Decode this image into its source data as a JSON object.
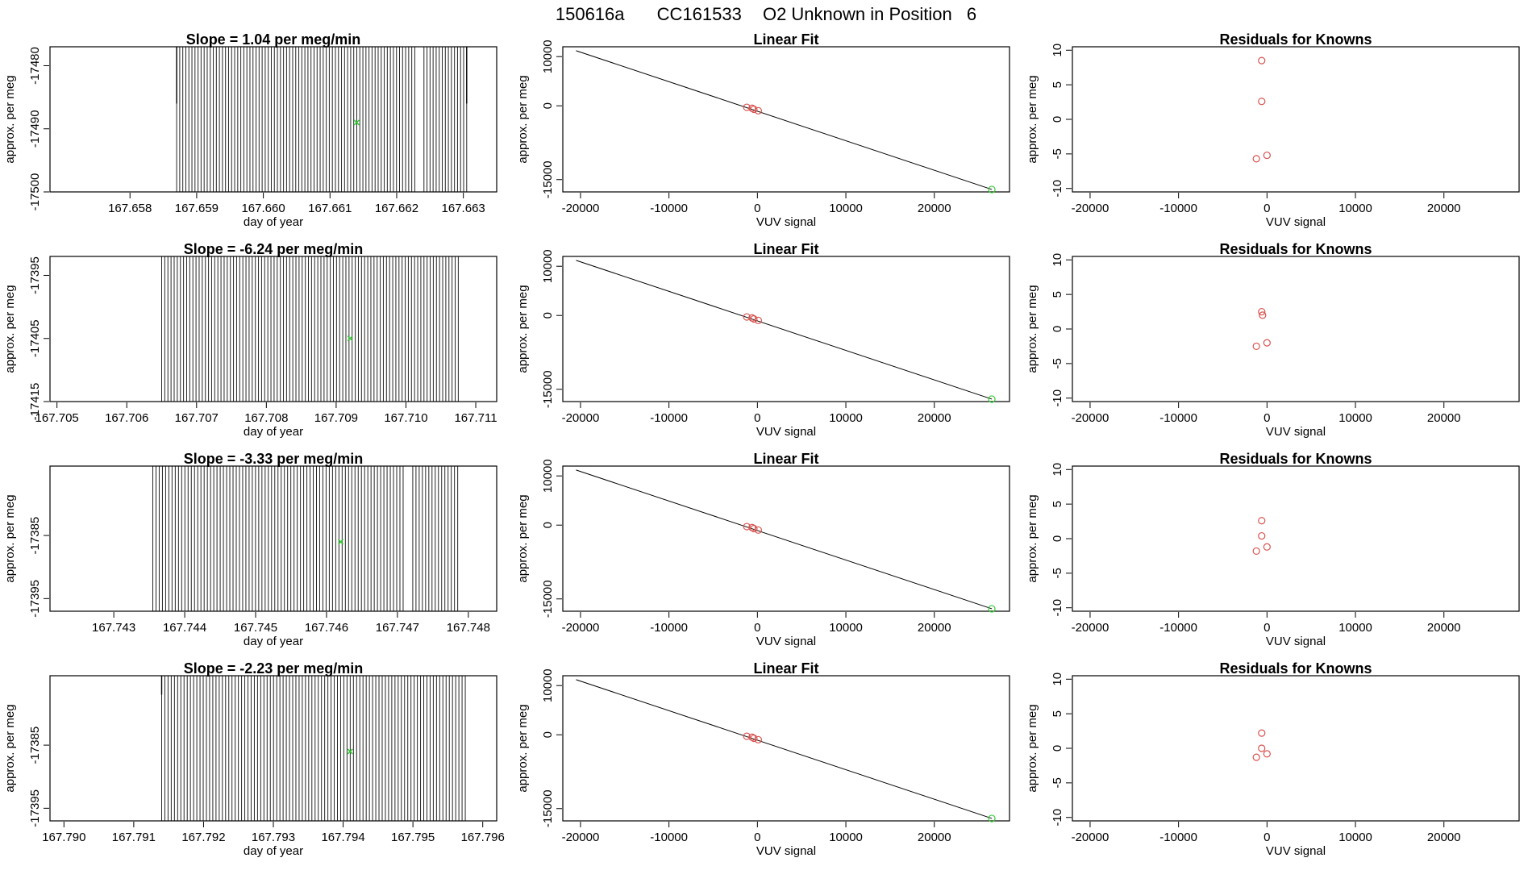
{
  "figure": {
    "run_id": "150616a",
    "tank": "CC161533",
    "description": "O2 Unknown in Position",
    "position": "6"
  },
  "colors": {
    "trace": "#000000",
    "mean_marker": "#33cc33",
    "known_points": "#d9534f",
    "unknown_point": "#33cc33",
    "fit_line": "#000000"
  },
  "chart_data": [
    {
      "row": 1,
      "time_series": {
        "type": "line",
        "title_prefix": "Slope = ",
        "slope": "1.04",
        "title_suffix": " per meg/min",
        "xlabel": "day of year",
        "ylabel": "approx. per meg",
        "xlim": [
          167.6568,
          167.6635
        ],
        "ylim": [
          -17500,
          -17477
        ],
        "xticks": [
          "167.658",
          "167.659",
          "167.660",
          "167.661",
          "167.662",
          "167.663"
        ],
        "xtick_values": [
          167.658,
          167.659,
          167.66,
          167.661,
          167.662,
          167.663
        ],
        "yticks": [
          "-17480",
          "-17490",
          "-17500"
        ],
        "ytick_values": [
          -17480,
          -17490,
          -17500
        ],
        "flat_line": {
          "x": [
            167.6568,
            167.6587
          ],
          "y": -17500
        },
        "trace_range": [
          167.6587,
          167.66305
        ],
        "trace_low": -17500,
        "trace_high": -17477,
        "gaps": [
          [
            167.6623,
            167.6624
          ]
        ],
        "edge_ticks": [
          {
            "x": 167.6587,
            "y_to": -17486
          },
          {
            "x": 167.66305,
            "y_to": -17486
          }
        ],
        "mean_point": {
          "x": 167.6614,
          "y": -17489
        }
      },
      "linear_fit": {
        "type": "scatter",
        "title": "Linear Fit",
        "xlabel": "VUV signal",
        "ylabel": "approx. per meg",
        "xlim": [
          -22000,
          28500
        ],
        "ylim": [
          -17500,
          12000
        ],
        "xticks": [
          "-20000",
          "-10000",
          "0",
          "10000",
          "20000"
        ],
        "xtick_values": [
          -20000,
          -10000,
          0,
          10000,
          20000
        ],
        "yticks": [
          "10000",
          "0",
          "-15000"
        ],
        "ytick_values": [
          10000,
          0,
          -15000
        ],
        "fit_line": {
          "x": [
            -20500,
            26500
          ],
          "y": [
            11200,
            -17000
          ]
        },
        "knowns": [
          {
            "x": -1200,
            "y": -300
          },
          {
            "x": -600,
            "y": -500
          },
          {
            "x": -400,
            "y": -700
          },
          {
            "x": 100,
            "y": -1000
          }
        ],
        "unknown": {
          "x": 26500,
          "y": -17000
        }
      },
      "residuals": {
        "type": "scatter",
        "title": "Residuals for Knowns",
        "xlabel": "VUV signal",
        "ylabel": "approx. per meg",
        "xlim": [
          -22000,
          28500
        ],
        "ylim": [
          -10.5,
          10.5
        ],
        "xticks": [
          "-20000",
          "-10000",
          "0",
          "10000",
          "20000"
        ],
        "xtick_values": [
          -20000,
          -10000,
          0,
          10000,
          20000
        ],
        "yticks": [
          "10",
          "5",
          "0",
          "-5",
          "-10"
        ],
        "ytick_values": [
          10,
          5,
          0,
          -5,
          -10
        ],
        "points": [
          {
            "x": -600,
            "y": 8.5
          },
          {
            "x": -600,
            "y": 2.6
          },
          {
            "x": -1200,
            "y": -5.7
          },
          {
            "x": 0,
            "y": -5.2
          }
        ]
      }
    },
    {
      "row": 2,
      "time_series": {
        "type": "line",
        "title_prefix": "Slope = ",
        "slope": "-6.24",
        "title_suffix": " per meg/min",
        "xlabel": "day of year",
        "ylabel": "approx. per meg",
        "xlim": [
          167.7049,
          167.7113
        ],
        "ylim": [
          -17415,
          -17392
        ],
        "xticks": [
          "167.705",
          "167.706",
          "167.707",
          "167.708",
          "167.709",
          "167.710",
          "167.711"
        ],
        "xtick_values": [
          167.705,
          167.706,
          167.707,
          167.708,
          167.709,
          167.71,
          167.711
        ],
        "yticks": [
          "-17395",
          "-17405",
          "-17415"
        ],
        "ytick_values": [
          -17395,
          -17405,
          -17415
        ],
        "flat_line": {
          "x": [
            167.7049,
            167.7065
          ],
          "y": -17415
        },
        "trace_range": [
          167.7065,
          167.71075
        ],
        "trace_low": -17415,
        "trace_high": -17392,
        "gaps": [],
        "edge_ticks": [],
        "mean_point": {
          "x": 167.7092,
          "y": -17405
        }
      },
      "linear_fit": {
        "type": "scatter",
        "title": "Linear Fit",
        "xlabel": "VUV signal",
        "ylabel": "approx. per meg",
        "xlim": [
          -22000,
          28500
        ],
        "ylim": [
          -17500,
          12000
        ],
        "xticks": [
          "-20000",
          "-10000",
          "0",
          "10000",
          "20000"
        ],
        "xtick_values": [
          -20000,
          -10000,
          0,
          10000,
          20000
        ],
        "yticks": [
          "10000",
          "0",
          "-15000"
        ],
        "ytick_values": [
          10000,
          0,
          -15000
        ],
        "fit_line": {
          "x": [
            -20500,
            26500
          ],
          "y": [
            11200,
            -17000
          ]
        },
        "knowns": [
          {
            "x": -1200,
            "y": -300
          },
          {
            "x": -600,
            "y": -500
          },
          {
            "x": -400,
            "y": -700
          },
          {
            "x": 100,
            "y": -1000
          }
        ],
        "unknown": {
          "x": 26500,
          "y": -17000
        }
      },
      "residuals": {
        "type": "scatter",
        "title": "Residuals for Knowns",
        "xlabel": "VUV signal",
        "ylabel": "approx. per meg",
        "xlim": [
          -22000,
          28500
        ],
        "ylim": [
          -10.5,
          10.5
        ],
        "xticks": [
          "-20000",
          "-10000",
          "0",
          "10000",
          "20000"
        ],
        "xtick_values": [
          -20000,
          -10000,
          0,
          10000,
          20000
        ],
        "yticks": [
          "10",
          "5",
          "0",
          "-5",
          "-10"
        ],
        "ytick_values": [
          10,
          5,
          0,
          -5,
          -10
        ],
        "points": [
          {
            "x": -600,
            "y": 2.5
          },
          {
            "x": -500,
            "y": 2.0
          },
          {
            "x": -1200,
            "y": -2.5
          },
          {
            "x": 0,
            "y": -2.0
          }
        ]
      }
    },
    {
      "row": 3,
      "time_series": {
        "type": "line",
        "title_prefix": "Slope = ",
        "slope": "-3.33",
        "title_suffix": " per meg/min",
        "xlabel": "day of year",
        "ylabel": "approx. per meg",
        "xlim": [
          167.7421,
          167.7484
        ],
        "ylim": [
          -17397,
          -17374
        ],
        "xticks": [
          "167.743",
          "167.744",
          "167.745",
          "167.746",
          "167.747",
          "167.748"
        ],
        "xtick_values": [
          167.743,
          167.744,
          167.745,
          167.746,
          167.747,
          167.748
        ],
        "yticks": [
          "-17385",
          "-17395"
        ],
        "ytick_values": [
          -17385,
          -17395
        ],
        "flat_line": {
          "x": [
            167.7421,
            167.74355
          ],
          "y": -17397
        },
        "trace_range": [
          167.74355,
          167.74785
        ],
        "trace_low": -17397,
        "trace_high": -17374,
        "gaps": [
          [
            167.7471,
            167.7472
          ]
        ],
        "edge_ticks": [],
        "mean_point": {
          "x": 167.7462,
          "y": -17386
        }
      },
      "linear_fit": {
        "type": "scatter",
        "title": "Linear Fit",
        "xlabel": "VUV signal",
        "ylabel": "approx. per meg",
        "xlim": [
          -22000,
          28500
        ],
        "ylim": [
          -17500,
          12000
        ],
        "xticks": [
          "-20000",
          "-10000",
          "0",
          "10000",
          "20000"
        ],
        "xtick_values": [
          -20000,
          -10000,
          0,
          10000,
          20000
        ],
        "yticks": [
          "10000",
          "0",
          "-15000"
        ],
        "ytick_values": [
          10000,
          0,
          -15000
        ],
        "fit_line": {
          "x": [
            -20500,
            26500
          ],
          "y": [
            11200,
            -17000
          ]
        },
        "knowns": [
          {
            "x": -1200,
            "y": -300
          },
          {
            "x": -600,
            "y": -500
          },
          {
            "x": -400,
            "y": -700
          },
          {
            "x": 100,
            "y": -1000
          }
        ],
        "unknown": {
          "x": 26500,
          "y": -17000
        }
      },
      "residuals": {
        "type": "scatter",
        "title": "Residuals for Knowns",
        "xlabel": "VUV signal",
        "ylabel": "approx. per meg",
        "xlim": [
          -22000,
          28500
        ],
        "ylim": [
          -10.5,
          10.5
        ],
        "xticks": [
          "-20000",
          "-10000",
          "0",
          "10000",
          "20000"
        ],
        "xtick_values": [
          -20000,
          -10000,
          0,
          10000,
          20000
        ],
        "yticks": [
          "10",
          "5",
          "0",
          "-5",
          "-10"
        ],
        "points": [
          {
            "x": -600,
            "y": 2.6
          },
          {
            "x": -600,
            "y": 0.4
          },
          {
            "x": -1200,
            "y": -1.8
          },
          {
            "x": 0,
            "y": -1.2
          }
        ],
        "ytick_values": [
          10,
          5,
          0,
          -5,
          -10
        ]
      }
    },
    {
      "row": 4,
      "time_series": {
        "type": "line",
        "title_prefix": "Slope = ",
        "slope": "-2.23",
        "title_suffix": " per meg/min",
        "xlabel": "day of year",
        "ylabel": "approx. per meg",
        "xlim": [
          167.7898,
          167.7962
        ],
        "ylim": [
          -17397,
          -17374
        ],
        "xticks": [
          "167.790",
          "167.791",
          "167.792",
          "167.793",
          "167.794",
          "167.795",
          "167.796"
        ],
        "xtick_values": [
          167.79,
          167.791,
          167.792,
          167.793,
          167.794,
          167.795,
          167.796
        ],
        "yticks": [
          "-17385",
          "-17395"
        ],
        "ytick_values": [
          -17385,
          -17395
        ],
        "flat_line": null,
        "trace_range": [
          167.7914,
          167.79575
        ],
        "trace_low": -17397,
        "trace_high": -17374,
        "gaps": [],
        "edge_ticks": [
          {
            "x": 167.7914,
            "y_to": -17377
          }
        ],
        "mean_point": {
          "x": 167.7941,
          "y": -17386
        }
      },
      "linear_fit": {
        "type": "scatter",
        "title": "Linear Fit",
        "xlabel": "VUV signal",
        "ylabel": "approx. per meg",
        "xlim": [
          -22000,
          28500
        ],
        "ylim": [
          -17500,
          12000
        ],
        "xticks": [
          "-20000",
          "-10000",
          "0",
          "10000",
          "20000"
        ],
        "xtick_values": [
          -20000,
          -10000,
          0,
          10000,
          20000
        ],
        "yticks": [
          "10000",
          "0",
          "-15000"
        ],
        "ytick_values": [
          10000,
          0,
          -15000
        ],
        "fit_line": {
          "x": [
            -20500,
            26500
          ],
          "y": [
            11200,
            -17000
          ]
        },
        "knowns": [
          {
            "x": -1200,
            "y": -300
          },
          {
            "x": -600,
            "y": -500
          },
          {
            "x": -400,
            "y": -700
          },
          {
            "x": 100,
            "y": -1000
          }
        ],
        "unknown": {
          "x": 26500,
          "y": -17000
        }
      },
      "residuals": {
        "type": "scatter",
        "title": "Residuals for Knowns",
        "xlabel": "VUV signal",
        "ylabel": "approx. per meg",
        "xlim": [
          -22000,
          28500
        ],
        "ylim": [
          -10.5,
          10.5
        ],
        "xticks": [
          "-20000",
          "-10000",
          "0",
          "10000",
          "20000"
        ],
        "xtick_values": [
          -20000,
          -10000,
          0,
          10000,
          20000
        ],
        "yticks": [
          "10",
          "5",
          "0",
          "-5",
          "-10"
        ],
        "ytick_values": [
          10,
          5,
          0,
          -5,
          -10
        ],
        "points": [
          {
            "x": -600,
            "y": 2.2
          },
          {
            "x": -600,
            "y": 0.0
          },
          {
            "x": -1200,
            "y": -1.3
          },
          {
            "x": 0,
            "y": -0.8
          }
        ]
      }
    }
  ]
}
